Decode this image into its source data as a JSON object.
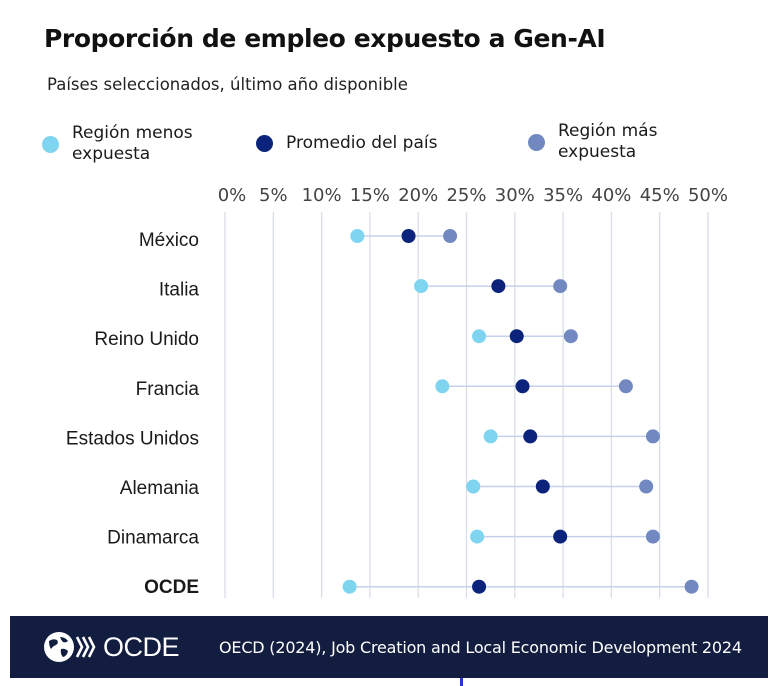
{
  "header": {
    "title": "Proporción de empleo expuesto a Gen-AI",
    "subtitle": "Países seleccionados, último año disponible"
  },
  "legend": [
    {
      "label": "Región menos expuesta",
      "color": "#7fd4ef"
    },
    {
      "label": "Promedio del país",
      "color": "#0b237b"
    },
    {
      "label": "Región más expuesta",
      "color": "#7189c0"
    }
  ],
  "chart_data": {
    "type": "dumbbell",
    "title": "Proporción de empleo expuesto a Gen-AI",
    "subtitle": "Países seleccionados, último año disponible",
    "xlabel": "",
    "ylabel": "",
    "xlim": [
      0,
      50
    ],
    "x_ticks": [
      "0%",
      "5%",
      "10%",
      "15%",
      "20%",
      "25%",
      "30%",
      "35%",
      "40%",
      "45%",
      "50%"
    ],
    "x_tick_values": [
      0,
      5,
      10,
      15,
      20,
      25,
      30,
      35,
      40,
      45,
      50
    ],
    "x_axis_position": "top",
    "grid": true,
    "legend_position": "top",
    "categories": [
      "México",
      "Italia",
      "Reino Unido",
      "Francia",
      "Estados Unidos",
      "Alemania",
      "Dinamarca",
      "OCDE"
    ],
    "bold_categories": [
      "OCDE"
    ],
    "series": [
      {
        "name": "Región menos expuesta",
        "color": "#7fd4ef",
        "values": [
          13.7,
          20.3,
          26.3,
          22.5,
          27.5,
          25.7,
          26.1,
          12.9
        ]
      },
      {
        "name": "Promedio del país",
        "color": "#0b237b",
        "values": [
          19.0,
          28.3,
          30.2,
          30.8,
          31.6,
          32.9,
          34.7,
          26.3
        ]
      },
      {
        "name": "Región más expuesta",
        "color": "#7189c0",
        "values": [
          23.3,
          34.7,
          35.8,
          41.5,
          44.3,
          43.6,
          44.3,
          48.3
        ]
      }
    ],
    "unit": "%"
  },
  "footer": {
    "logo_text": "OCDE",
    "source": "OECD (2024), Job Creation and Local Economic Development 2024",
    "background": "#121d3f"
  }
}
